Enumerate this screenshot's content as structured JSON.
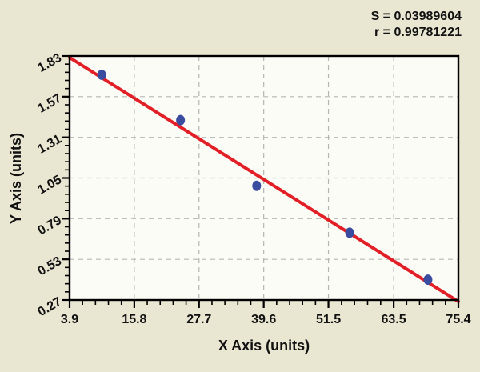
{
  "figure": {
    "background_color": "#e9e6d2",
    "plot_background_color": "#fcfcf6"
  },
  "stats": {
    "s_value": "S = 0.03989604",
    "r_value": "r = 0.99781221"
  },
  "chart_data": {
    "type": "scatter",
    "title": "",
    "xlabel": "X Axis (units)",
    "ylabel": "Y Axis (units)",
    "xlim": [
      3.9,
      75.4
    ],
    "ylim": [
      0.27,
      1.83
    ],
    "x_ticks": [
      3.9,
      15.8,
      27.7,
      39.6,
      51.5,
      63.5,
      75.4
    ],
    "y_ticks": [
      0.27,
      0.53,
      0.79,
      1.05,
      1.31,
      1.57,
      1.83
    ],
    "minor_divisions_per_major": 5,
    "grid": {
      "style": "dashed",
      "on_major_ticks": true,
      "color": "#b5b5b5"
    },
    "legend": "none",
    "points": [
      {
        "x": 9.8,
        "y": 1.71
      },
      {
        "x": 24.3,
        "y": 1.42
      },
      {
        "x": 38.3,
        "y": 1.0
      },
      {
        "x": 55.4,
        "y": 0.7
      },
      {
        "x": 69.8,
        "y": 0.4
      }
    ],
    "regression_line": {
      "x1": 3.9,
      "y1": 1.82,
      "x2": 75.4,
      "y2": 0.26
    },
    "annotations": [
      "S = 0.03989604",
      "r = 0.99781221"
    ],
    "colors": {
      "line": "#e21f26",
      "point": "#3a4ca0",
      "axis": "#000000",
      "text": "#111111"
    }
  }
}
